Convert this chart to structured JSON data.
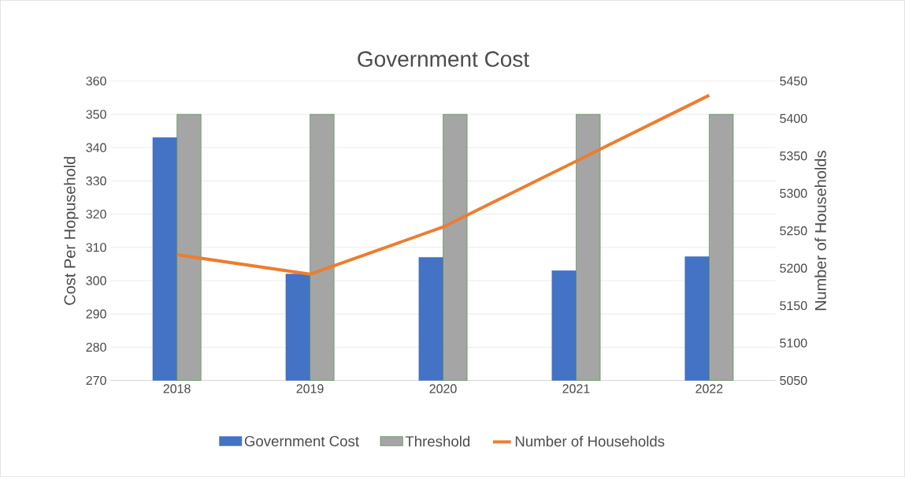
{
  "chart_data": {
    "type": "bar",
    "title": "Government Cost",
    "categories": [
      "2018",
      "2019",
      "2020",
      "2021",
      "2022"
    ],
    "series": [
      {
        "name": "Government Cost",
        "color": "#4472c4",
        "values": [
          343,
          302,
          307,
          303,
          307.2
        ]
      },
      {
        "name": "Threshold",
        "color": "#a5a5a5",
        "values": [
          350,
          350,
          350,
          350,
          350
        ]
      },
      {
        "name": "Number of Households",
        "type": "line",
        "axis": "y2",
        "color": "#ed7d31",
        "values": [
          5218,
          5192,
          5255,
          5343,
          5431
        ]
      }
    ],
    "ylabel": "Cost Per Hopusehold",
    "y2label": "Number of Households",
    "ylim": [
      270,
      360
    ],
    "yticks": [
      270,
      280,
      290,
      300,
      310,
      320,
      330,
      340,
      350,
      360
    ],
    "y2lim": [
      5050,
      5450
    ],
    "y2ticks": [
      5050,
      5100,
      5150,
      5200,
      5250,
      5300,
      5350,
      5400,
      5450
    ],
    "grid": "y",
    "legend": "bottom"
  }
}
